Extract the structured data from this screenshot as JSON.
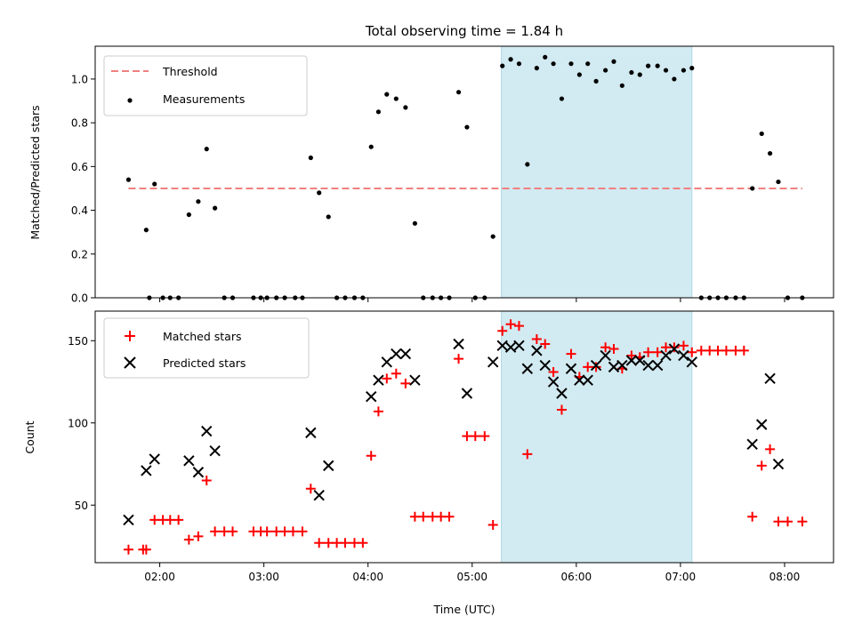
{
  "chart_data": [
    {
      "type": "scatter",
      "title": "Total observing time = 1.84 h",
      "xlabel": "",
      "ylabel": "Matched/Predicted stars",
      "xlim_hours": [
        1.38,
        8.47
      ],
      "ylim": [
        0,
        1.15
      ],
      "x_ticks": [
        2,
        3,
        4,
        5,
        6,
        7,
        8
      ],
      "x_tick_labels": [
        "",
        "",
        "",
        "",
        "",
        "",
        ""
      ],
      "y_ticks": [
        0,
        0.2,
        0.4,
        0.6,
        0.8,
        1.0
      ],
      "y_tick_labels": [
        "0.0",
        "0.2",
        "0.4",
        "0.6",
        "0.8",
        "1.0"
      ],
      "grid": false,
      "legend_position": "upper-left",
      "shaded_span_hours": [
        5.28,
        7.11
      ],
      "shaded_color": "#add8e6",
      "series": [
        {
          "name": "Threshold",
          "kind": "dashed-line",
          "color": "#f08080",
          "x": [
            1.7,
            8.17
          ],
          "y": [
            0.5,
            0.5
          ]
        },
        {
          "name": "Measurements",
          "kind": "dot",
          "color": "#000000",
          "x": [
            1.7,
            1.87,
            1.9,
            1.95,
            2.03,
            2.1,
            2.18,
            2.28,
            2.37,
            2.45,
            2.53,
            2.62,
            2.7,
            2.9,
            2.97,
            3.03,
            3.12,
            3.2,
            3.3,
            3.37,
            3.45,
            3.53,
            3.62,
            3.7,
            3.78,
            3.87,
            3.95,
            4.03,
            4.1,
            4.18,
            4.27,
            4.36,
            4.45,
            4.53,
            4.62,
            4.7,
            4.78,
            4.87,
            4.95,
            5.03,
            5.12,
            5.2,
            5.29,
            5.37,
            5.45,
            5.53,
            5.62,
            5.7,
            5.78,
            5.86,
            5.95,
            6.03,
            6.11,
            6.19,
            6.28,
            6.36,
            6.44,
            6.53,
            6.61,
            6.69,
            6.78,
            6.86,
            6.94,
            7.03,
            7.11,
            7.2,
            7.28,
            7.36,
            7.44,
            7.53,
            7.61,
            7.69,
            7.78,
            7.86,
            7.94,
            8.03,
            8.17
          ],
          "values": [
            0.54,
            0.31,
            0,
            0.52,
            0,
            0,
            0,
            0.38,
            0.44,
            0.68,
            0.41,
            0,
            0,
            0,
            0,
            0,
            0,
            0,
            0,
            0,
            0.64,
            0.48,
            0.37,
            0,
            0,
            0,
            0,
            0.69,
            0.85,
            0.93,
            0.91,
            0.87,
            0.34,
            0,
            0,
            0,
            0,
            0.94,
            0.78,
            0,
            0,
            0.28,
            1.06,
            1.09,
            1.07,
            0.61,
            1.05,
            1.1,
            1.07,
            0.91,
            1.07,
            1.02,
            1.07,
            0.99,
            1.04,
            1.08,
            0.97,
            1.03,
            1.02,
            1.06,
            1.06,
            1.04,
            1.0,
            1.04,
            1.05,
            0,
            0,
            0,
            0,
            0,
            0,
            0.5,
            0.75,
            0.66,
            0.53,
            0,
            0
          ]
        }
      ]
    },
    {
      "type": "scatter",
      "title": "",
      "xlabel": "Time (UTC)",
      "ylabel": "Count",
      "xlim_hours": [
        1.38,
        8.47
      ],
      "ylim": [
        15,
        168
      ],
      "x_ticks": [
        2,
        3,
        4,
        5,
        6,
        7,
        8
      ],
      "x_tick_labels": [
        "02:00",
        "03:00",
        "04:00",
        "05:00",
        "06:00",
        "07:00",
        "08:00"
      ],
      "y_ticks": [
        50,
        100,
        150
      ],
      "y_tick_labels": [
        "50",
        "100",
        "150"
      ],
      "grid": false,
      "legend_position": "upper-left",
      "shaded_span_hours": [
        5.28,
        7.11
      ],
      "shaded_color": "#add8e6",
      "series": [
        {
          "name": "Matched stars",
          "kind": "plus",
          "color": "#ff0000",
          "x": [
            1.7,
            1.84,
            1.87,
            1.95,
            2.03,
            2.1,
            2.18,
            2.28,
            2.37,
            2.45,
            2.53,
            2.62,
            2.7,
            2.9,
            2.97,
            3.03,
            3.12,
            3.2,
            3.28,
            3.37,
            3.45,
            3.53,
            3.62,
            3.7,
            3.78,
            3.87,
            3.95,
            4.03,
            4.1,
            4.18,
            4.27,
            4.36,
            4.45,
            4.53,
            4.62,
            4.7,
            4.78,
            4.87,
            4.95,
            5.03,
            5.12,
            5.2,
            5.29,
            5.37,
            5.45,
            5.53,
            5.62,
            5.7,
            5.78,
            5.86,
            5.95,
            6.03,
            6.11,
            6.19,
            6.28,
            6.36,
            6.44,
            6.53,
            6.61,
            6.69,
            6.78,
            6.86,
            6.94,
            7.03,
            7.11,
            7.2,
            7.28,
            7.36,
            7.44,
            7.53,
            7.61,
            7.69,
            7.78,
            7.86,
            7.94,
            8.03,
            8.17
          ],
          "values": [
            23,
            23,
            23,
            41,
            41,
            41,
            41,
            29,
            31,
            65,
            34,
            34,
            34,
            34,
            34,
            34,
            34,
            34,
            34,
            34,
            60,
            27,
            27,
            27,
            27,
            27,
            27,
            80,
            107,
            127,
            130,
            124,
            43,
            43,
            43,
            43,
            43,
            139,
            92,
            92,
            92,
            38,
            156,
            160,
            159,
            81,
            151,
            148,
            131,
            108,
            142,
            128,
            134,
            134,
            146,
            145,
            133,
            141,
            140,
            143,
            143,
            146,
            146,
            147,
            143,
            144,
            144,
            144,
            144,
            144,
            144,
            43,
            74,
            84,
            40,
            40,
            40
          ]
        },
        {
          "name": "Predicted stars",
          "kind": "x",
          "color": "#000000",
          "x": [
            1.7,
            1.87,
            1.95,
            2.28,
            2.37,
            2.45,
            2.53,
            3.45,
            3.53,
            3.62,
            4.03,
            4.1,
            4.18,
            4.27,
            4.36,
            4.45,
            4.87,
            4.95,
            5.2,
            5.29,
            5.37,
            5.45,
            5.53,
            5.62,
            5.7,
            5.78,
            5.86,
            5.95,
            6.03,
            6.11,
            6.19,
            6.28,
            6.36,
            6.44,
            6.53,
            6.61,
            6.69,
            6.78,
            6.86,
            6.94,
            7.03,
            7.11,
            7.69,
            7.78,
            7.86,
            7.94
          ],
          "values": [
            41,
            71,
            78,
            77,
            70,
            95,
            83,
            94,
            56,
            74,
            116,
            126,
            137,
            142,
            142,
            126,
            148,
            118,
            137,
            147,
            146,
            147,
            133,
            144,
            135,
            125,
            118,
            133,
            126,
            126,
            135,
            141,
            134,
            135,
            138,
            138,
            135,
            135,
            141,
            145,
            141,
            137,
            87,
            99,
            127,
            75
          ]
        }
      ]
    }
  ]
}
